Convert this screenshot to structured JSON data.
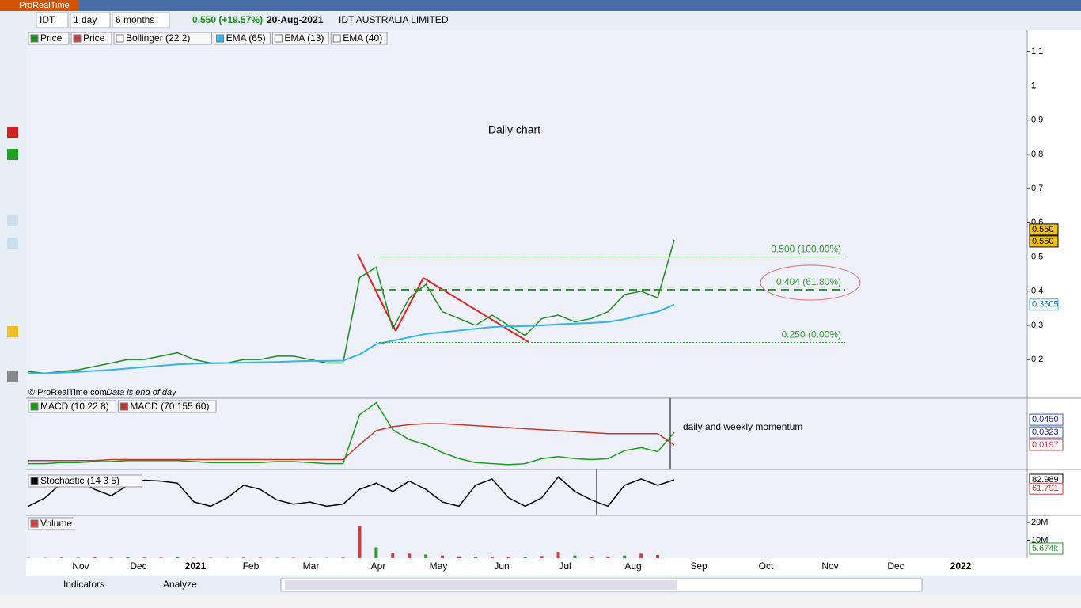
{
  "window": {
    "app_title": "ProRealTime"
  },
  "toolbar": {
    "ticker": "IDT",
    "interval": "1 day",
    "period": "6 months",
    "last_price": "0.550 (+19.57%)",
    "date": "20-Aug-2021",
    "name": "IDT AUSTRALIA LIMITED"
  },
  "chart_data": [
    {
      "type": "line",
      "title": "Daily chart",
      "copyright": "© ProRealTime.com",
      "note": "Data is end of day",
      "indicators": [
        "Price",
        "Bollinger (22 2)",
        "EMA (13)",
        "EMA (40)"
      ],
      "series": [
        {
          "name": "Price",
          "color": "#1f8a1f",
          "values": [
            0.165,
            0.16,
            0.165,
            0.17,
            0.18,
            0.19,
            0.2,
            0.2,
            0.21,
            0.22,
            0.2,
            0.19,
            0.19,
            0.2,
            0.2,
            0.21,
            0.21,
            0.2,
            0.19,
            0.19,
            0.44,
            0.47,
            0.29,
            0.38,
            0.42,
            0.34,
            0.32,
            0.3,
            0.33,
            0.3,
            0.27,
            0.32,
            0.33,
            0.31,
            0.32,
            0.34,
            0.39,
            0.4,
            0.38,
            0.55
          ]
        },
        {
          "name": "EMA (65)",
          "color": "#33b5e5",
          "values": [
            0.16,
            0.16,
            0.162,
            0.164,
            0.167,
            0.17,
            0.174,
            0.178,
            0.182,
            0.186,
            0.188,
            0.189,
            0.19,
            0.191,
            0.192,
            0.193,
            0.195,
            0.196,
            0.196,
            0.197,
            0.215,
            0.245,
            0.255,
            0.265,
            0.275,
            0.28,
            0.285,
            0.29,
            0.295,
            0.297,
            0.298,
            0.3,
            0.303,
            0.305,
            0.307,
            0.31,
            0.318,
            0.33,
            0.34,
            0.3605
          ]
        }
      ],
      "ylim": [
        0.087,
        1.163
      ],
      "yticks": [
        1.1,
        1,
        0.9,
        0.8,
        0.7,
        0.6,
        0.5,
        0.4,
        0.3,
        0.2
      ],
      "price_labels": [
        {
          "value": 0.55,
          "label": "0.550"
        },
        {
          "value": 0.55,
          "label": "0.550"
        },
        0.3605
      ],
      "fib_levels": [
        {
          "value": 0.5,
          "label": "0.500 (100.00%)"
        },
        {
          "value": 0.404,
          "label": "0.404 (61.80%)"
        },
        {
          "value": 0.25,
          "label": "0.250 (0.00%)"
        }
      ]
    },
    {
      "type": "line",
      "annotation": "daily and weekly momentum",
      "series": [
        {
          "name": "MACD (10 22 8)",
          "color": "#1a9a1a",
          "values": [
            0.001,
            0.001,
            0.002,
            0.002,
            0.003,
            0.003,
            0.004,
            0.004,
            0.004,
            0.004,
            0.003,
            0.002,
            0.002,
            0.002,
            0.002,
            0.003,
            0.003,
            0.002,
            0.001,
            0.001,
            0.05,
            0.062,
            0.035,
            0.025,
            0.02,
            0.012,
            0.006,
            0.002,
            0.001,
            0.0,
            0.001,
            0.006,
            0.008,
            0.006,
            0.005,
            0.006,
            0.014,
            0.017,
            0.013,
            0.0323
          ]
        },
        {
          "name": "MACD (70 155 60)",
          "color": "#c0392b",
          "values": [
            0.004,
            0.004,
            0.004,
            0.004,
            0.004,
            0.005,
            0.005,
            0.005,
            0.005,
            0.005,
            0.005,
            0.005,
            0.005,
            0.005,
            0.005,
            0.005,
            0.005,
            0.005,
            0.005,
            0.005,
            0.02,
            0.034,
            0.038,
            0.04,
            0.041,
            0.041,
            0.04,
            0.039,
            0.038,
            0.037,
            0.036,
            0.035,
            0.034,
            0.033,
            0.032,
            0.031,
            0.031,
            0.031,
            0.031,
            0.0197
          ]
        }
      ],
      "ylim": [
        -0.0049,
        0.0665
      ],
      "last_values": [
        {
          "value": 0.045,
          "label": "0.0450"
        },
        {
          "value": 0.0323,
          "label": "0.0323"
        },
        {
          "value": 0.0197,
          "label": "0.0197"
        }
      ]
    },
    {
      "type": "line",
      "series": [
        {
          "name": "Stochastic (14 3 5)",
          "color": "#000000",
          "values": [
            20,
            40,
            75,
            80,
            60,
            45,
            70,
            82,
            80,
            75,
            30,
            20,
            40,
            70,
            60,
            35,
            25,
            30,
            20,
            25,
            60,
            75,
            55,
            80,
            60,
            30,
            20,
            70,
            85,
            40,
            20,
            40,
            90,
            55,
            35,
            20,
            70,
            85,
            70,
            82.989
          ]
        }
      ],
      "ylim": [
        0,
        100
      ],
      "last_values": [
        82.989,
        61.791
      ]
    },
    {
      "type": "bar",
      "series": [
        {
          "name": "Volume",
          "color": "#d04040",
          "values": [
            200000,
            150000,
            300000,
            250000,
            400000,
            300000,
            500000,
            350000,
            300000,
            450000,
            250000,
            200000,
            150000,
            300000,
            250000,
            200000,
            200000,
            150000,
            150000,
            300000,
            18000000,
            6000000,
            3000000,
            2500000,
            2000000,
            1500000,
            1000000,
            800000,
            900000,
            700000,
            600000,
            1200000,
            3500000,
            1500000,
            800000,
            1000000,
            1500000,
            2500000,
            1800000,
            5674
          ]
        }
      ],
      "ylim": [
        0,
        24000000
      ],
      "yticks": [
        {
          "value": 20000000,
          "label": "20M"
        },
        {
          "value": 10000000,
          "label": "10M"
        }
      ],
      "last_value": {
        "value": 5674,
        "label": "5.674k"
      }
    }
  ],
  "x_axis": {
    "labels": [
      "Nov",
      "Dec",
      "2021",
      "Feb",
      "Mar",
      "Apr",
      "May",
      "Jun",
      "Jul",
      "Aug",
      "Sep",
      "Oct",
      "Nov",
      "Dec",
      "2022"
    ]
  },
  "bottom_toolbar": {
    "indicators": "Indicators",
    "analyze": "Analyze"
  }
}
